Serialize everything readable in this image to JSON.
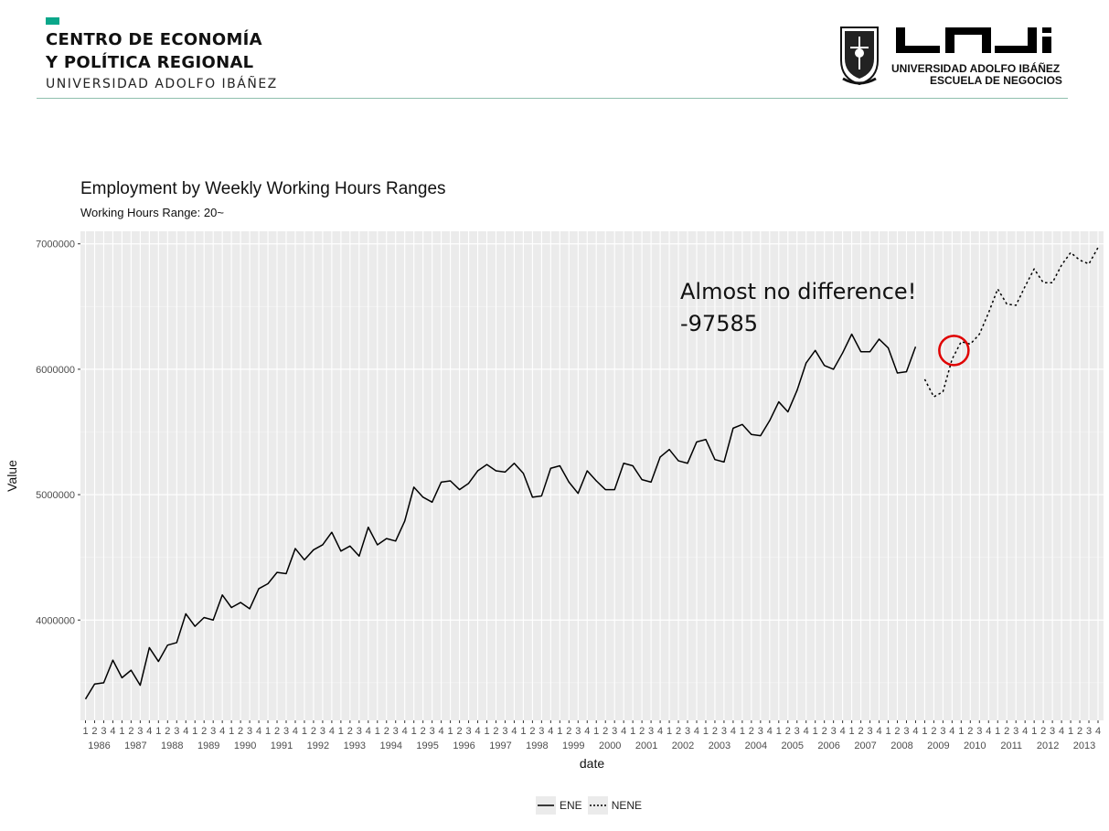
{
  "header": {
    "org_line1": "CENTRO DE ECONOMÍA",
    "org_line2": "Y POLÍTICA REGIONAL",
    "org_sub": "UNIVERSIDAD ADOLFO IBÁÑEZ",
    "uai_line1": "UNIVERSIDAD ADOLFO IBÁÑEZ",
    "uai_line2": "ESCUELA DE NEGOCIOS",
    "accent": "#0aa78a"
  },
  "chart_data": {
    "type": "line",
    "title": "Employment by Weekly Working Hours Ranges",
    "subtitle": "Working Hours Range: 20~",
    "xlabel": "date",
    "ylabel": "Value",
    "ylim": [
      3200000,
      7100000
    ],
    "y_ticks": [
      4000000,
      5000000,
      6000000,
      7000000
    ],
    "y_tick_labels": [
      "4000000",
      "5000000",
      "6000000",
      "7000000"
    ],
    "x_start_year": 1986,
    "x_end_year": 2013,
    "quarter_labels": [
      "1",
      "2",
      "3",
      "4"
    ],
    "years": [
      "1986",
      "1987",
      "1988",
      "1989",
      "1990",
      "1991",
      "1992",
      "1993",
      "1994",
      "1995",
      "1996",
      "1997",
      "1998",
      "1999",
      "2000",
      "2001",
      "2002",
      "2003",
      "2004",
      "2005",
      "2006",
      "2007",
      "2008",
      "2009",
      "2010",
      "2011",
      "2012",
      "2013"
    ],
    "grid": true,
    "legend_position": "bottom",
    "annotation": {
      "line1": "Almost no difference!",
      "line2": "-97585",
      "circle_at": {
        "year": 2009,
        "quarter": 4,
        "value": 6150000
      }
    },
    "series": [
      {
        "name": "ENE",
        "style": "solid",
        "start_year": 1986,
        "start_quarter": 1,
        "values": [
          3370000,
          3490000,
          3500000,
          3680000,
          3540000,
          3600000,
          3480000,
          3780000,
          3670000,
          3800000,
          3820000,
          4050000,
          3950000,
          4020000,
          4000000,
          4200000,
          4100000,
          4140000,
          4090000,
          4250000,
          4290000,
          4380000,
          4370000,
          4570000,
          4480000,
          4560000,
          4600000,
          4700000,
          4550000,
          4590000,
          4510000,
          4740000,
          4600000,
          4650000,
          4630000,
          4790000,
          5060000,
          4980000,
          4940000,
          5100000,
          5110000,
          5040000,
          5090000,
          5190000,
          5240000,
          5190000,
          5180000,
          5250000,
          5170000,
          4980000,
          4990000,
          5210000,
          5230000,
          5100000,
          5010000,
          5190000,
          5110000,
          5040000,
          5040000,
          5250000,
          5230000,
          5120000,
          5100000,
          5300000,
          5360000,
          5270000,
          5250000,
          5420000,
          5440000,
          5280000,
          5260000,
          5530000,
          5560000,
          5480000,
          5470000,
          5590000,
          5740000,
          5660000,
          5830000,
          6050000,
          6150000,
          6030000,
          6000000,
          6130000,
          6280000,
          6140000,
          6140000,
          6240000,
          6170000,
          5970000,
          5980000,
          6180000
        ]
      },
      {
        "name": "NENE",
        "style": "dotted",
        "start_year": 2009,
        "start_quarter": 1,
        "values": [
          5920000,
          5780000,
          5820000,
          6080000,
          6220000,
          6200000,
          6280000,
          6450000,
          6640000,
          6520000,
          6510000,
          6660000,
          6800000,
          6690000,
          6690000,
          6830000,
          6930000,
          6870000,
          6840000,
          6970000
        ]
      }
    ]
  }
}
